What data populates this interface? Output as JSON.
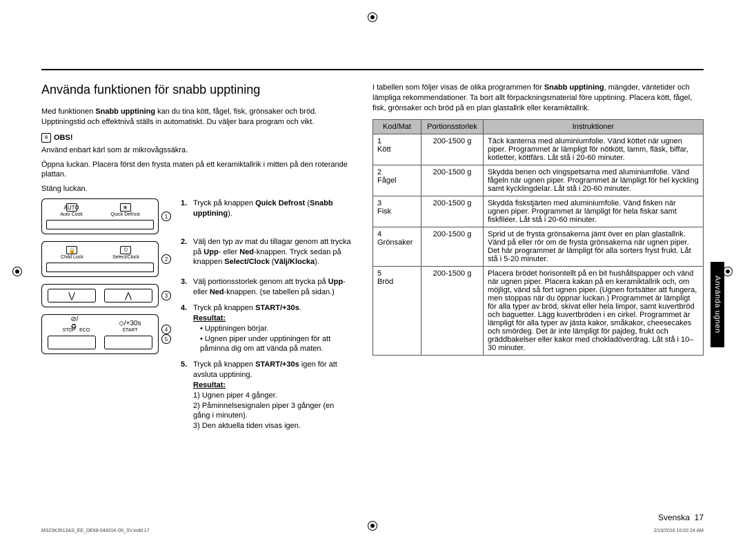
{
  "section_title": "Använda funktionen för snabb upptining",
  "intro1_a": "Med funktionen ",
  "intro1_b": "Snabb upptining",
  "intro1_c": " kan du tina kött, fågel, fisk, grönsaker och bröd. Upptiningstid och effektnivå ställs in automatiskt. Du väljer bara program och vikt.",
  "obs_label": "OBS!",
  "obs_text": "Använd enbart kärl som är mikrovågssäkra.",
  "open_text": "Öppna luckan. Placera först den frysta maten på ett keramiktallrik i mitten på den roterande plattan.",
  "close_text": "Stäng luckan.",
  "panel1": {
    "left_label": "Auto Cook",
    "right_label": "Quick Defrost",
    "left_icon": "AUTO",
    "right_icon": "❄"
  },
  "panel2": {
    "left_label": "Child Lock",
    "right_label": "Select/Clock",
    "left_icon": "🔒",
    "right_icon": "⏲"
  },
  "panel3": {
    "down": "⋁",
    "up": "⋀"
  },
  "panel4": {
    "stop_label": "STOP",
    "eco_label": "ECO",
    "start_label": "START",
    "stop_icon": "⊘/♻",
    "start_icon": "◇/+30s"
  },
  "steps": {
    "s1_a": "Tryck på knappen ",
    "s1_b": "Quick Defrost",
    "s1_c": " (",
    "s1_d": "Snabb upptining",
    "s1_e": ").",
    "s2_a": "Välj den typ av mat du tillagar genom att trycka på ",
    "s2_b": "Upp",
    "s2_c": "- eller ",
    "s2_d": "Ned",
    "s2_e": "-knappen. Tryck sedan på knappen ",
    "s2_f": "Select/Clock",
    "s2_g": " (",
    "s2_h": "Välj/Klocka",
    "s2_i": ").",
    "s3_a": "Välj portionsstorlek genom att trycka på ",
    "s3_b": "Upp",
    "s3_c": "- eller ",
    "s3_d": "Ned",
    "s3_e": "-knappen. (se tabellen på sidan.)",
    "s4_a": "Tryck på knappen ",
    "s4_b": "START/+30s",
    "s4_c": ".",
    "res_label": "Resultat:",
    "s4_r1": "Upptiningen börjar.",
    "s4_r2": "Ugnen piper under upptiningen för att påminna dig om att vända på maten.",
    "s5_a": "Tryck på knappen ",
    "s5_b": "START/+30s",
    "s5_c": " igen för att avsluta upptining.",
    "s5_r1": "Ugnen piper 4 gånger.",
    "s5_r2": "Påminnelsesignalen piper 3 gånger (en gång i minuten).",
    "s5_r3": "Den aktuella tiden visas igen."
  },
  "right_intro_a": "I tabellen som följer visas de olika programmen för ",
  "right_intro_b": "Snabb upptining",
  "right_intro_c": ", mängder, väntetider och lämpliga rekommendationer. Ta bort allt förpackningsmaterial före upptining. Placera kött, fågel, fisk, grönsaker och bröd på en plan glastallrik eller keramiktallrik.",
  "table": {
    "headers": [
      "Kod/Mat",
      "Portionsstorlek",
      "Instruktioner"
    ],
    "rows": [
      {
        "code": "1",
        "name": "Kött",
        "portion": "200-1500 g",
        "instr": "Täck kanterna med aluminiumfolie. Vänd köttet när ugnen piper. Programmet är lämpligt för nötkött, lamm, fläsk, biffar, kotletter, köttfärs. Låt stå i 20-60 minuter."
      },
      {
        "code": "2",
        "name": "Fågel",
        "portion": "200-1500 g",
        "instr": "Skydda benen och vingspetsarna med aluminiumfolie. Vänd fågeln när ugnen piper. Programmet är lämpligt för hel kyckling samt kycklingdelar. Låt stå i 20-60 minuter."
      },
      {
        "code": "3",
        "name": "Fisk",
        "portion": "200-1500 g",
        "instr": "Skydda fiskstjärten med aluminiumfolie. Vänd fisken när ugnen piper. Programmet är lämpligt för hela fiskar samt fiskfiléer. Låt stå i 20-60 minuter."
      },
      {
        "code": "4",
        "name": "Grönsaker",
        "portion": "200-1500 g",
        "instr": "Sprid ut de frysta grönsakerna jämt över en plan glastallrik. Vänd på eller rör om de frysta grönsakerna när ugnen piper. Det här programmet är lämpligt för alla sorters fryst frukt. Låt stå i 5-20 minuter."
      },
      {
        "code": "5",
        "name": "Bröd",
        "portion": "200-1500 g",
        "instr": "Placera brödet horisontellt på en bit hushållspapper och vänd när ugnen piper. Placera kakan på en keramiktallrik och, om möjligt, vänd så fort ugnen piper. (Ugnen fortsätter att fungera, men stoppas när du öppnar luckan.) Programmet är lämpligt för alla typer av bröd, skivat eller hela limpor, samt kuvertbröd och baguetter. Lägg kuvertbröden i en cirkel. Programmet är lämpligt för alla typer av jästa kakor, småkakor, cheesecakes och smördeg. Det är inte lämpligt för pajdeg, frukt och gräddbakelser eller kakor med chokladöverdrag. Låt stå i 10–30 minuter."
      }
    ]
  },
  "side_tab": "Använda ugnen",
  "footer_lang": "Svenska",
  "footer_page": "17",
  "footer_left": "MS23K3513AS_EE_DE68-04431K-00_SV.indd   17",
  "footer_right": "2/15/2016   10:02:24 AM"
}
